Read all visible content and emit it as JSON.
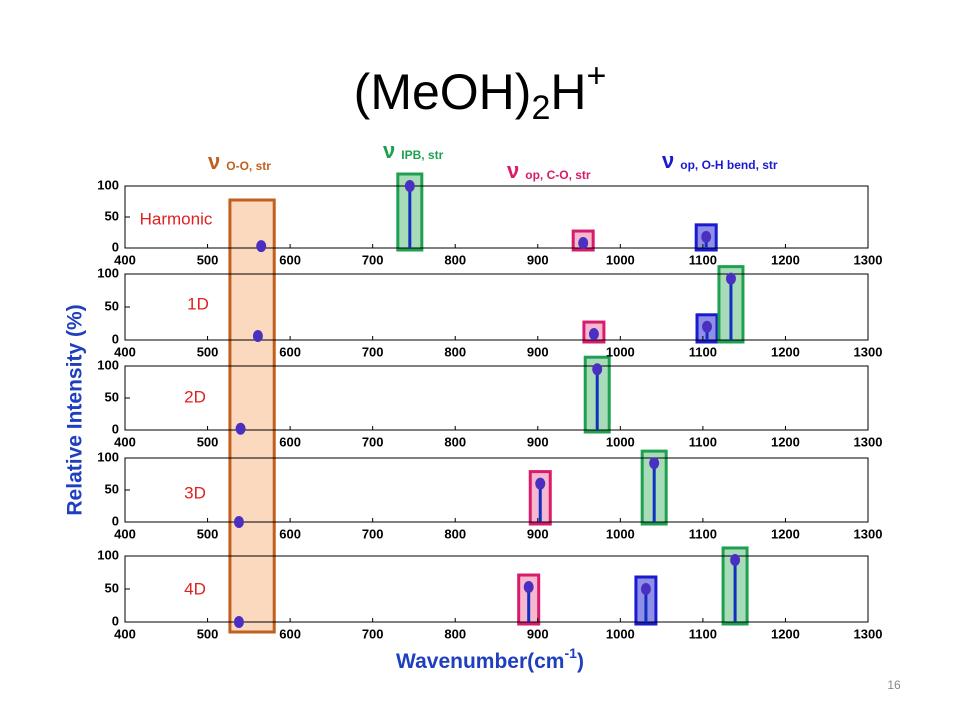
{
  "title": {
    "main": "(MeOH)",
    "sub": "2",
    "main2": "H",
    "sup": "+"
  },
  "modes": [
    {
      "symbol": "ν",
      "label": "O-O, str",
      "color": "#c0601e"
    },
    {
      "symbol": "ν",
      "label": "IPB, str",
      "color": "#1fa050"
    },
    {
      "symbol": "ν",
      "label": "op, C-O, str",
      "color": "#d81b6a"
    },
    {
      "symbol": "ν",
      "label": "op, O-H bend, str",
      "color": "#1a1ad0"
    }
  ],
  "ylabel": "Relative Intensity (%)",
  "xlabel": {
    "text": "Wavenumber(cm",
    "sup": "-1",
    "end": ")"
  },
  "page_number": "16",
  "chart_data": [
    {
      "type": "stem",
      "title": "Harmonic",
      "x": [
        565,
        745,
        955,
        1104
      ],
      "values": [
        3,
        100,
        8,
        18
      ],
      "colors": [
        "#c0601e",
        "#1fa050",
        "#d81b6a",
        "#1a1ad0"
      ],
      "xlim": [
        400,
        1300
      ],
      "ylim": [
        0,
        100
      ],
      "xticks": [
        400,
        500,
        600,
        700,
        800,
        900,
        1000,
        1100,
        1200,
        1300
      ],
      "yticks": [
        0,
        50,
        100
      ]
    },
    {
      "type": "stem",
      "title": "1D",
      "x": [
        561,
        968,
        1105,
        1134
      ],
      "values": [
        6,
        9,
        20,
        93
      ],
      "colors": [
        "#c0601e",
        "#d81b6a",
        "#1a1ad0",
        "#1fa050"
      ],
      "xlim": [
        400,
        1300
      ],
      "ylim": [
        0,
        100
      ],
      "xticks": [
        400,
        500,
        600,
        700,
        800,
        900,
        1000,
        1100,
        1200,
        1300
      ],
      "yticks": [
        0,
        50,
        100
      ]
    },
    {
      "type": "stem",
      "title": "2D",
      "x": [
        540,
        972
      ],
      "values": [
        2,
        95
      ],
      "colors": [
        "#c0601e",
        "#1fa050"
      ],
      "xlim": [
        400,
        1300
      ],
      "ylim": [
        0,
        100
      ],
      "xticks": [
        400,
        500,
        600,
        700,
        800,
        900,
        1000,
        1100,
        1200,
        1300
      ],
      "yticks": [
        0,
        50,
        100
      ]
    },
    {
      "type": "stem",
      "title": "3D",
      "x": [
        538,
        903,
        1041
      ],
      "values": [
        0,
        60,
        92
      ],
      "colors": [
        "#c0601e",
        "#d81b6a",
        "#1fa050"
      ],
      "xlim": [
        400,
        1300
      ],
      "ylim": [
        0,
        100
      ],
      "xticks": [
        400,
        500,
        600,
        700,
        800,
        900,
        1000,
        1100,
        1200,
        1300
      ],
      "yticks": [
        0,
        50,
        100
      ]
    },
    {
      "type": "stem",
      "title": "4D",
      "x": [
        538,
        889,
        1031,
        1139
      ],
      "values": [
        0,
        53,
        50,
        94
      ],
      "colors": [
        "#c0601e",
        "#d81b6a",
        "#1a1ad0",
        "#1fa050"
      ],
      "xlim": [
        400,
        1300
      ],
      "ylim": [
        0,
        100
      ],
      "xticks": [
        400,
        500,
        600,
        700,
        800,
        900,
        1000,
        1100,
        1200,
        1300
      ],
      "yticks": [
        0,
        50,
        100
      ]
    }
  ]
}
